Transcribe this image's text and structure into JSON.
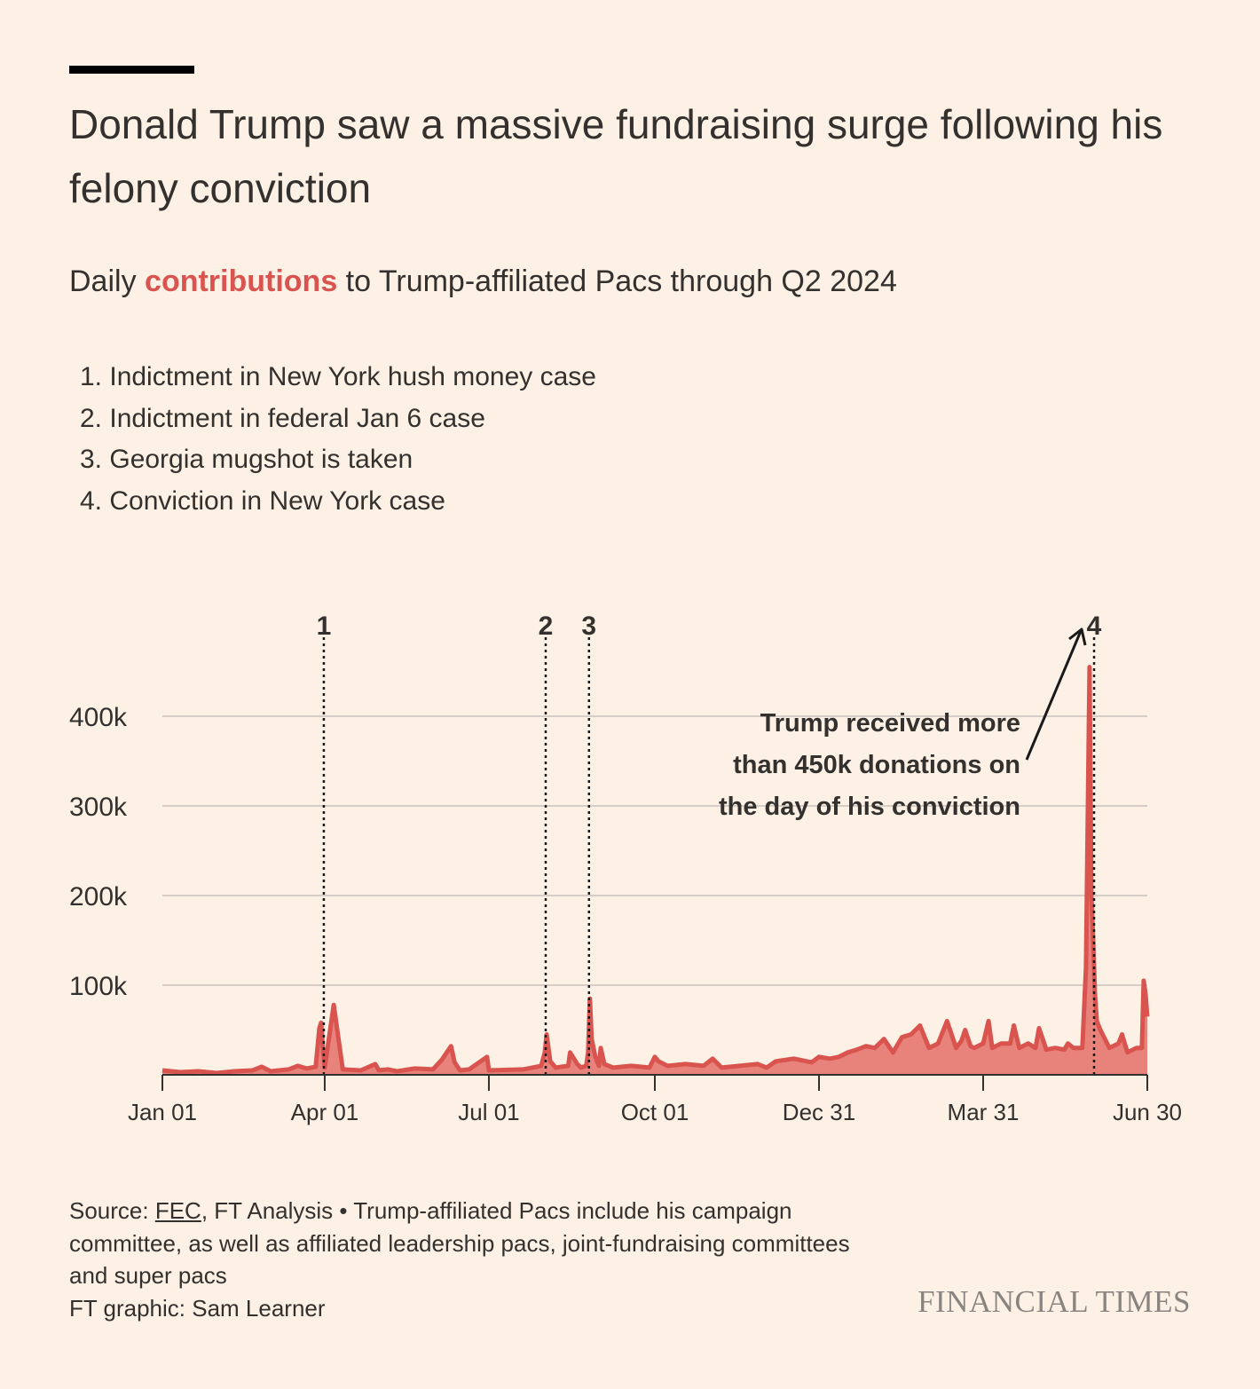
{
  "header": {
    "title": "Donald Trump saw a massive fundraising surge following his felony conviction",
    "subtitle_pre": "Daily ",
    "subtitle_highlight": "contributions",
    "subtitle_post": " to Trump-affiliated Pacs through Q2 2024"
  },
  "events": [
    "1. Indictment in New York hush money case",
    "2. Indictment in federal Jan 6 case",
    "3. Georgia mugshot is taken",
    "4. Conviction in New York case"
  ],
  "chart_data": {
    "type": "area",
    "title": "Daily contributions to Trump-affiliated Pacs through Q2 2024",
    "xlabel": "",
    "ylabel": "",
    "color": "#d9534f",
    "fill_color": "#e8837c",
    "grid": true,
    "x_range": [
      "2023-01-01",
      "2024-06-30"
    ],
    "ylim": [
      0,
      460000
    ],
    "yticks": [
      100000,
      200000,
      300000,
      400000
    ],
    "ytick_labels": [
      "100k",
      "200k",
      "300k",
      "400k"
    ],
    "xticks": [
      0,
      90,
      181,
      273,
      364,
      455,
      546
    ],
    "xtick_labels": [
      "Jan 01",
      "Apr 01",
      "Jul 01",
      "Oct 01",
      "Dec 31",
      "Mar 31",
      "Jun 30"
    ],
    "x_day_index": [
      0,
      10,
      20,
      30,
      40,
      50,
      55,
      60,
      70,
      75,
      80,
      85,
      86,
      87,
      88,
      89,
      90,
      95,
      100,
      110,
      118,
      120,
      125,
      130,
      140,
      150,
      155,
      160,
      162,
      165,
      170,
      180,
      181,
      200,
      205,
      210,
      212,
      213,
      214,
      215,
      218,
      225,
      226,
      230,
      232,
      235,
      236,
      237,
      238,
      240,
      242,
      243,
      245,
      250,
      260,
      270,
      273,
      275,
      280,
      290,
      300,
      305,
      310,
      320,
      330,
      335,
      340,
      350,
      360,
      364,
      370,
      375,
      380,
      385,
      390,
      395,
      400,
      405,
      410,
      415,
      420,
      425,
      430,
      435,
      440,
      443,
      445,
      448,
      450,
      455,
      458,
      460,
      465,
      470,
      472,
      475,
      480,
      484,
      486,
      490,
      495,
      500,
      502,
      505,
      510,
      512,
      514,
      515,
      516,
      517,
      518,
      520,
      525,
      530,
      532,
      535,
      540,
      543,
      544,
      545,
      546
    ],
    "values": [
      5000,
      3000,
      4000,
      2000,
      4000,
      5000,
      9000,
      4000,
      6000,
      10000,
      7000,
      9000,
      30000,
      52000,
      58000,
      30000,
      8000,
      78000,
      6000,
      5000,
      12000,
      5000,
      6000,
      4000,
      7000,
      6000,
      17000,
      32000,
      14000,
      5000,
      6000,
      20000,
      5000,
      6000,
      8000,
      10000,
      25000,
      45000,
      30000,
      15000,
      8000,
      10000,
      25000,
      12000,
      8000,
      10000,
      25000,
      85000,
      40000,
      20000,
      10000,
      30000,
      12000,
      8000,
      10000,
      8000,
      20000,
      15000,
      10000,
      12000,
      10000,
      18000,
      8000,
      10000,
      12000,
      8000,
      15000,
      18000,
      14000,
      20000,
      18000,
      20000,
      25000,
      28000,
      32000,
      30000,
      40000,
      25000,
      42000,
      45000,
      55000,
      30000,
      35000,
      60000,
      30000,
      38000,
      50000,
      32000,
      30000,
      35000,
      60000,
      30000,
      35000,
      35000,
      55000,
      30000,
      35000,
      30000,
      52000,
      28000,
      30000,
      28000,
      35000,
      30000,
      30000,
      120000,
      455000,
      200000,
      150000,
      90000,
      60000,
      50000,
      30000,
      35000,
      45000,
      25000,
      30000,
      30000,
      105000,
      90000,
      65000
    ]
  },
  "markers": [
    {
      "label": "1",
      "day": 89
    },
    {
      "label": "2",
      "day": 212
    },
    {
      "label": "3",
      "day": 236
    },
    {
      "label": "4",
      "day": 516
    }
  ],
  "annotation": {
    "line1": "Trump received more",
    "line2": "than 450k donations on",
    "line3": "the day of his conviction"
  },
  "footer": {
    "source_label": "Source: ",
    "source_link": "FEC",
    "source_rest": ", FT Analysis • Trump-affiliated Pacs include his campaign committee, as well as affiliated leadership pacs, joint-fundraising committees and super pacs",
    "credit": "FT graphic: Sam Learner",
    "brand": "FINANCIAL TIMES"
  }
}
